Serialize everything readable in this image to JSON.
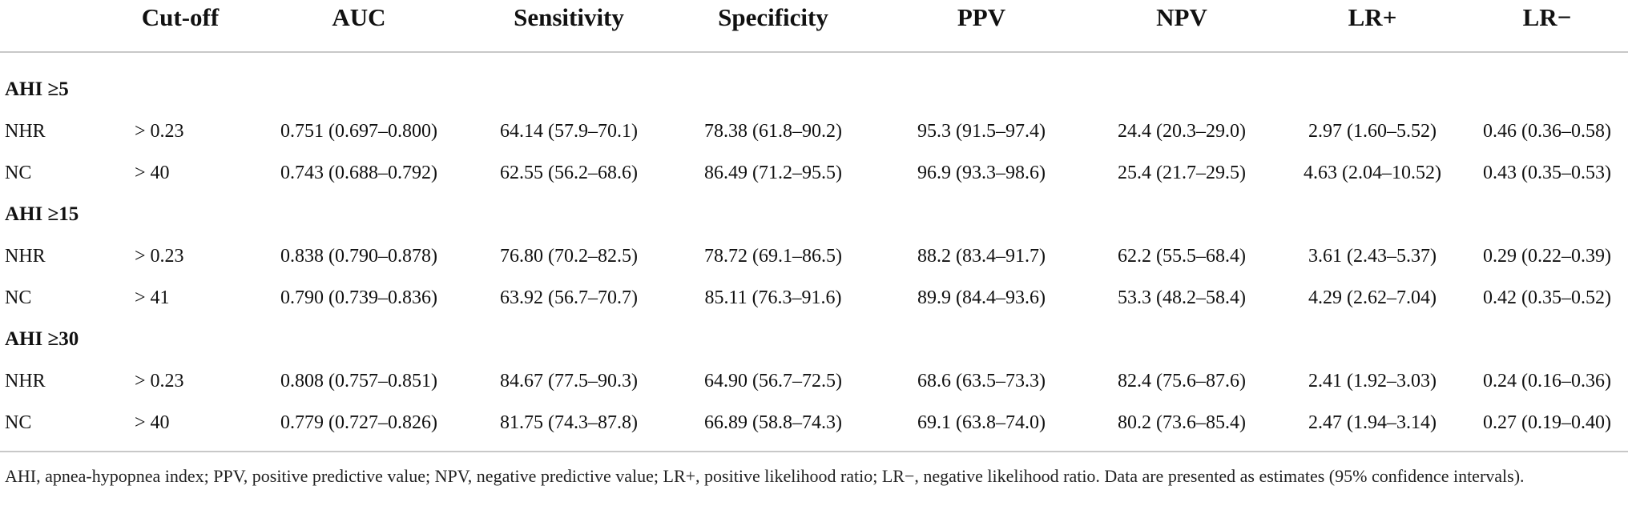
{
  "columns": [
    "",
    "Cut-off",
    "AUC",
    "Sensitivity",
    "Specificity",
    "PPV",
    "NPV",
    "LR+",
    "LR−"
  ],
  "groups": [
    {
      "label": "AHI ≥5",
      "rows": [
        {
          "name": "NHR",
          "cutoff": "> 0.23",
          "auc": "0.751 (0.697–0.800)",
          "sensitivity": "64.14 (57.9–70.1)",
          "specificity": "78.38 (61.8–90.2)",
          "ppv": "95.3 (91.5–97.4)",
          "npv": "24.4 (20.3–29.0)",
          "lr_pos": "2.97 (1.60–5.52)",
          "lr_neg": "0.46 (0.36–0.58)"
        },
        {
          "name": "NC",
          "cutoff": "> 40",
          "auc": "0.743 (0.688–0.792)",
          "sensitivity": "62.55 (56.2–68.6)",
          "specificity": "86.49 (71.2–95.5)",
          "ppv": "96.9 (93.3–98.6)",
          "npv": "25.4 (21.7–29.5)",
          "lr_pos": "4.63 (2.04–10.52)",
          "lr_neg": "0.43 (0.35–0.53)"
        }
      ]
    },
    {
      "label": "AHI ≥15",
      "rows": [
        {
          "name": "NHR",
          "cutoff": "> 0.23",
          "auc": "0.838 (0.790–0.878)",
          "sensitivity": "76.80 (70.2–82.5)",
          "specificity": "78.72 (69.1–86.5)",
          "ppv": "88.2 (83.4–91.7)",
          "npv": "62.2 (55.5–68.4)",
          "lr_pos": "3.61 (2.43–5.37)",
          "lr_neg": "0.29 (0.22–0.39)"
        },
        {
          "name": "NC",
          "cutoff": "> 41",
          "auc": "0.790 (0.739–0.836)",
          "sensitivity": "63.92 (56.7–70.7)",
          "specificity": "85.11 (76.3–91.6)",
          "ppv": "89.9 (84.4–93.6)",
          "npv": "53.3 (48.2–58.4)",
          "lr_pos": "4.29 (2.62–7.04)",
          "lr_neg": "0.42 (0.35–0.52)"
        }
      ]
    },
    {
      "label": "AHI ≥30",
      "rows": [
        {
          "name": "NHR",
          "cutoff": "> 0.23",
          "auc": "0.808 (0.757–0.851)",
          "sensitivity": "84.67 (77.5–90.3)",
          "specificity": "64.90 (56.7–72.5)",
          "ppv": "68.6 (63.5–73.3)",
          "npv": "82.4 (75.6–87.6)",
          "lr_pos": "2.41 (1.92–3.03)",
          "lr_neg": "0.24 (0.16–0.36)"
        },
        {
          "name": "NC",
          "cutoff": "> 40",
          "auc": "0.779 (0.727–0.826)",
          "sensitivity": "81.75 (74.3–87.8)",
          "specificity": "66.89 (58.8–74.3)",
          "ppv": "69.1 (63.8–74.0)",
          "npv": "80.2 (73.6–85.4)",
          "lr_pos": "2.47 (1.94–3.14)",
          "lr_neg": "0.27 (0.19–0.40)"
        }
      ]
    }
  ],
  "footnote": "AHI, apnea-hypopnea index; PPV, positive predictive value; NPV, negative predictive value; LR+, positive likelihood ratio; LR−, negative likelihood ratio. Data are presented as estimates (95% confidence intervals)."
}
